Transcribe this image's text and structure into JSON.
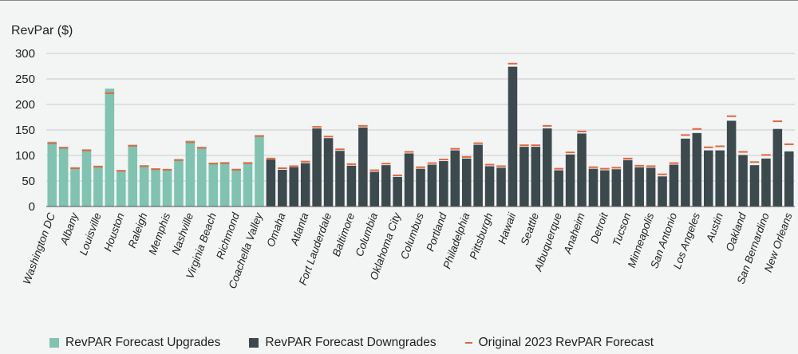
{
  "chart_data": {
    "type": "bar",
    "ylabel": "RevPar ($)",
    "ylim": [
      0,
      300
    ],
    "yticks": [
      0,
      50,
      100,
      150,
      200,
      250,
      300
    ],
    "grid": true,
    "legend_position": "bottom",
    "colors": {
      "upgrade": "#7fc3b0",
      "downgrade": "#3c4a4e",
      "original": "#e2663f",
      "grid": "#c9cccc"
    },
    "series": [
      {
        "name": "RevPAR Forecast Upgrades",
        "kind": "upgrade"
      },
      {
        "name": "RevPAR Forecast Downgrades",
        "kind": "downgrade"
      },
      {
        "name": "Original 2023 RevPAR Forecast",
        "kind": "original"
      }
    ],
    "categories": [
      {
        "label": "Washington DC",
        "value": 127,
        "original": 124,
        "kind": "upgrade"
      },
      {
        "label": "",
        "value": 117,
        "original": 115,
        "kind": "upgrade"
      },
      {
        "label": "Albany",
        "value": 77,
        "original": 75,
        "kind": "upgrade"
      },
      {
        "label": "",
        "value": 112,
        "original": 110,
        "kind": "upgrade"
      },
      {
        "label": "Louisville",
        "value": 80,
        "original": 78,
        "kind": "upgrade"
      },
      {
        "label": "",
        "value": 231,
        "original": 222,
        "kind": "upgrade"
      },
      {
        "label": "Houston",
        "value": 71,
        "original": 70,
        "kind": "upgrade"
      },
      {
        "label": "",
        "value": 121,
        "original": 119,
        "kind": "upgrade"
      },
      {
        "label": "Raleigh",
        "value": 81,
        "original": 79,
        "kind": "upgrade"
      },
      {
        "label": "",
        "value": 75,
        "original": 73,
        "kind": "upgrade"
      },
      {
        "label": "Memphis",
        "value": 73,
        "original": 72,
        "kind": "upgrade"
      },
      {
        "label": "",
        "value": 93,
        "original": 91,
        "kind": "upgrade"
      },
      {
        "label": "Nashville",
        "value": 129,
        "original": 126,
        "kind": "upgrade"
      },
      {
        "label": "",
        "value": 117,
        "original": 115,
        "kind": "upgrade"
      },
      {
        "label": "Virginia Beach",
        "value": 86,
        "original": 84,
        "kind": "upgrade"
      },
      {
        "label": "",
        "value": 87,
        "original": 85,
        "kind": "upgrade"
      },
      {
        "label": "Richmond",
        "value": 74,
        "original": 72,
        "kind": "upgrade"
      },
      {
        "label": "",
        "value": 87,
        "original": 85,
        "kind": "upgrade"
      },
      {
        "label": "Coachella Valley",
        "value": 140,
        "original": 138,
        "kind": "upgrade"
      },
      {
        "label": "",
        "value": 92,
        "original": 94,
        "kind": "downgrade"
      },
      {
        "label": "Omaha",
        "value": 72,
        "original": 75,
        "kind": "downgrade"
      },
      {
        "label": "",
        "value": 77,
        "original": 79,
        "kind": "downgrade"
      },
      {
        "label": "Atlanta",
        "value": 85,
        "original": 88,
        "kind": "downgrade"
      },
      {
        "label": "",
        "value": 153,
        "original": 156,
        "kind": "downgrade"
      },
      {
        "label": "Fort Lauderdale",
        "value": 134,
        "original": 137,
        "kind": "downgrade"
      },
      {
        "label": "",
        "value": 109,
        "original": 112,
        "kind": "downgrade"
      },
      {
        "label": "Baltimore",
        "value": 80,
        "original": 83,
        "kind": "downgrade"
      },
      {
        "label": "",
        "value": 155,
        "original": 158,
        "kind": "downgrade"
      },
      {
        "label": "Columbia",
        "value": 68,
        "original": 71,
        "kind": "downgrade"
      },
      {
        "label": "",
        "value": 81,
        "original": 84,
        "kind": "downgrade"
      },
      {
        "label": "Oklahoma City",
        "value": 58,
        "original": 61,
        "kind": "downgrade"
      },
      {
        "label": "",
        "value": 104,
        "original": 107,
        "kind": "downgrade"
      },
      {
        "label": "Columbus",
        "value": 74,
        "original": 77,
        "kind": "downgrade"
      },
      {
        "label": "",
        "value": 82,
        "original": 85,
        "kind": "downgrade"
      },
      {
        "label": "Portland",
        "value": 89,
        "original": 92,
        "kind": "downgrade"
      },
      {
        "label": "",
        "value": 110,
        "original": 113,
        "kind": "downgrade"
      },
      {
        "label": "Philadelphia",
        "value": 94,
        "original": 97,
        "kind": "downgrade"
      },
      {
        "label": "",
        "value": 121,
        "original": 124,
        "kind": "downgrade"
      },
      {
        "label": "Pittsburgh",
        "value": 79,
        "original": 82,
        "kind": "downgrade"
      },
      {
        "label": "",
        "value": 76,
        "original": 79,
        "kind": "downgrade"
      },
      {
        "label": "Hawaii",
        "value": 274,
        "original": 280,
        "kind": "downgrade"
      },
      {
        "label": "",
        "value": 117,
        "original": 120,
        "kind": "downgrade"
      },
      {
        "label": "Seattle",
        "value": 117,
        "original": 120,
        "kind": "downgrade"
      },
      {
        "label": "",
        "value": 153,
        "original": 158,
        "kind": "downgrade"
      },
      {
        "label": "Albuquerque",
        "value": 71,
        "original": 74,
        "kind": "downgrade"
      },
      {
        "label": "",
        "value": 102,
        "original": 106,
        "kind": "downgrade"
      },
      {
        "label": "Anaheim",
        "value": 143,
        "original": 147,
        "kind": "downgrade"
      },
      {
        "label": "",
        "value": 74,
        "original": 77,
        "kind": "downgrade"
      },
      {
        "label": "Detroit",
        "value": 71,
        "original": 74,
        "kind": "downgrade"
      },
      {
        "label": "",
        "value": 73,
        "original": 76,
        "kind": "downgrade"
      },
      {
        "label": "Tucson",
        "value": 91,
        "original": 94,
        "kind": "downgrade"
      },
      {
        "label": "",
        "value": 77,
        "original": 80,
        "kind": "downgrade"
      },
      {
        "label": "Minneapolis",
        "value": 76,
        "original": 79,
        "kind": "downgrade"
      },
      {
        "label": "",
        "value": 59,
        "original": 63,
        "kind": "downgrade"
      },
      {
        "label": "San Antonio",
        "value": 82,
        "original": 85,
        "kind": "downgrade"
      },
      {
        "label": "",
        "value": 133,
        "original": 140,
        "kind": "downgrade"
      },
      {
        "label": "Los Angeles",
        "value": 144,
        "original": 152,
        "kind": "downgrade"
      },
      {
        "label": "",
        "value": 110,
        "original": 116,
        "kind": "downgrade"
      },
      {
        "label": "Austin",
        "value": 110,
        "original": 118,
        "kind": "downgrade"
      },
      {
        "label": "",
        "value": 168,
        "original": 177,
        "kind": "downgrade"
      },
      {
        "label": "Oakland",
        "value": 101,
        "original": 107,
        "kind": "downgrade"
      },
      {
        "label": "",
        "value": 81,
        "original": 87,
        "kind": "downgrade"
      },
      {
        "label": "San Bernardino",
        "value": 94,
        "original": 101,
        "kind": "downgrade"
      },
      {
        "label": "",
        "value": 152,
        "original": 167,
        "kind": "downgrade"
      },
      {
        "label": "New Orleans",
        "value": 108,
        "original": 122,
        "kind": "downgrade"
      }
    ]
  }
}
